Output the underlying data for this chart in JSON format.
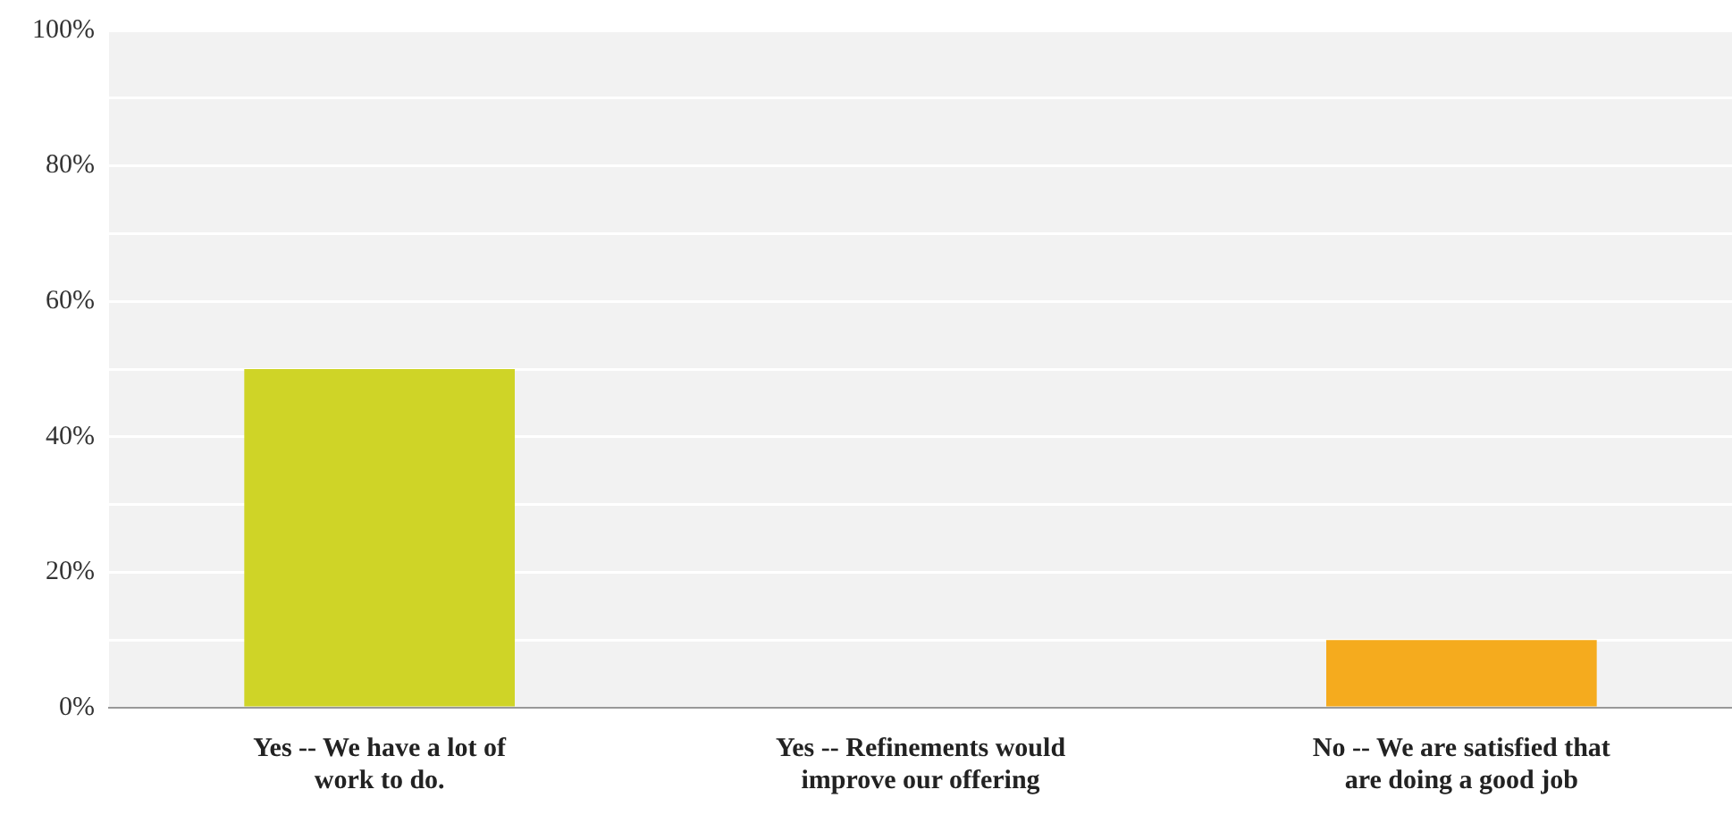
{
  "chart_data": {
    "type": "bar",
    "categories": [
      "Yes -- We have a lot of work to do.",
      "Yes -- Refinements would improve our offering",
      "No -- We are satisfied that are doing a good job"
    ],
    "colors": [
      "#cfd427",
      "#f2f2f2",
      "#f5ab1e"
    ],
    "values": [
      50,
      0,
      10
    ],
    "ylim": [
      0,
      100
    ],
    "yticks": [
      {
        "value": 0,
        "label": "0%"
      },
      {
        "value": 10,
        "label": null
      },
      {
        "value": 20,
        "label": "20%"
      },
      {
        "value": 30,
        "label": null
      },
      {
        "value": 40,
        "label": "40%"
      },
      {
        "value": 50,
        "label": null
      },
      {
        "value": 60,
        "label": "60%"
      },
      {
        "value": 70,
        "label": null
      },
      {
        "value": 80,
        "label": "80%"
      },
      {
        "value": 90,
        "label": null
      },
      {
        "value": 100,
        "label": "100%"
      }
    ],
    "grid": "y",
    "legend": false
  }
}
